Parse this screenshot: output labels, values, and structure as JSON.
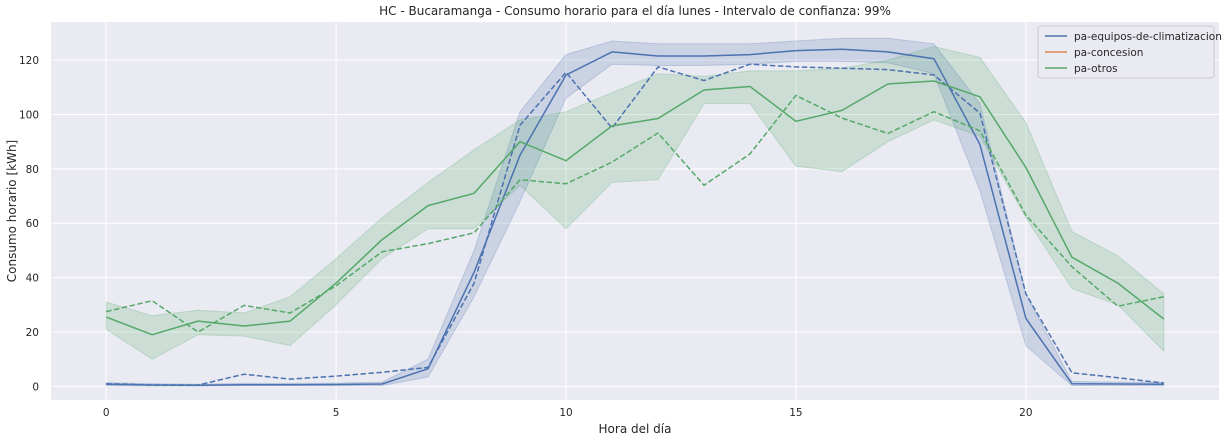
{
  "chart_data": {
    "type": "line",
    "title": "HC - Bucaramanga - Consumo horario para el día lunes - Intervalo de confianza: 99%",
    "xlabel": "Hora del día",
    "ylabel": "Consumo horario [kWh]",
    "xlim": [
      -1.2,
      24.2
    ],
    "ylim": [
      -5,
      134
    ],
    "xticks": [
      0,
      5,
      10,
      15,
      20
    ],
    "xtick_labels": [
      "0",
      "5",
      "10",
      "15",
      "20"
    ],
    "yticks": [
      0,
      20,
      40,
      60,
      80,
      100,
      120
    ],
    "ytick_labels": [
      "0",
      "20",
      "40",
      "60",
      "80",
      "100",
      "120"
    ],
    "grid": true,
    "legend_position": "top-right",
    "x": [
      0,
      1,
      2,
      3,
      4,
      5,
      6,
      7,
      8,
      9,
      10,
      11,
      12,
      13,
      14,
      15,
      16,
      17,
      18,
      19,
      20,
      21,
      22,
      23
    ],
    "series": [
      {
        "name": "pa-equipos-de-climatizacion",
        "color": "#4c72b0",
        "mean": [
          0.8,
          0.5,
          0.4,
          0.6,
          0.6,
          0.7,
          0.9,
          6.5,
          42,
          85,
          114.5,
          123,
          121.5,
          121.5,
          122,
          123.5,
          124,
          123,
          120.5,
          89,
          25,
          1.0,
          0.9,
          0.8
        ],
        "lower": [
          0.2,
          0.1,
          0.1,
          0.2,
          0.2,
          0.2,
          0.3,
          3.5,
          33,
          68,
          106,
          118.5,
          118,
          118,
          118.5,
          119.5,
          119.5,
          119,
          115,
          72,
          15,
          0.3,
          0.3,
          0.2
        ],
        "upper": [
          1.4,
          1.0,
          0.8,
          1.1,
          1.1,
          1.2,
          1.6,
          10,
          50,
          101,
          122,
          127,
          126,
          126,
          126,
          127,
          128,
          128,
          126,
          104,
          34,
          1.8,
          1.6,
          1.5
        ],
        "dashed": [
          1.0,
          0.5,
          0.5,
          4.5,
          2.7,
          3.8,
          5.2,
          7.0,
          38,
          96,
          115.5,
          95,
          117.5,
          112.5,
          118.5,
          117.5,
          117,
          116.5,
          114.5,
          100.5,
          34,
          5.0,
          3.2,
          1.2
        ]
      },
      {
        "name": "pa-concesion",
        "color": "#dd8452",
        "mean": [],
        "lower": [],
        "upper": [],
        "dashed": []
      },
      {
        "name": "pa-otros",
        "color": "#55a868",
        "mean": [
          25.5,
          19.0,
          24.0,
          22.2,
          24.0,
          38.0,
          54.0,
          66.5,
          71.0,
          90.0,
          83.0,
          95.8,
          98.5,
          109.0,
          110.3,
          97.5,
          101.5,
          111.2,
          112.3,
          106.5,
          80.5,
          47.5,
          38.0,
          24.8
        ],
        "lower": [
          21,
          10,
          19,
          18.5,
          15,
          30,
          47,
          58,
          58,
          74,
          58,
          75,
          76,
          104,
          104,
          81,
          79,
          90,
          98,
          92,
          62,
          36,
          30,
          13
        ],
        "upper": [
          31,
          26,
          28,
          27,
          33,
          47,
          62,
          75,
          87,
          98,
          101,
          108,
          115,
          114,
          116,
          116,
          117,
          120,
          125,
          121,
          97,
          57,
          48,
          34
        ],
        "dashed": [
          27.5,
          31.5,
          20.0,
          29.8,
          27.0,
          37.0,
          49.5,
          52.5,
          56.5,
          76.0,
          74.5,
          82.5,
          93.2,
          74.0,
          85.5,
          107.0,
          98.7,
          93.0,
          101.0,
          94.0,
          63.0,
          44.0,
          29.5,
          33.0
        ]
      }
    ]
  }
}
